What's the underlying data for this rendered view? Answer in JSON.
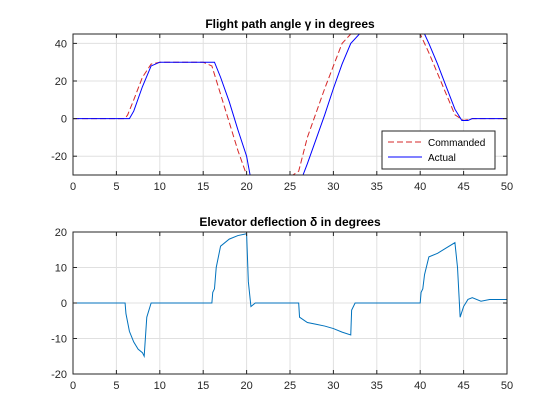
{
  "colors": {
    "commanded": "#d62728",
    "actual": "#0000ff",
    "elevator": "#0072bd",
    "grid": "#e0e0e0",
    "axis": "#262626"
  },
  "chart_data": [
    {
      "type": "line",
      "title": "Flight path angle γ in degrees",
      "xlabel": "",
      "ylabel": "",
      "xlim": [
        0,
        50
      ],
      "ylim": [
        -30,
        45
      ],
      "xticks": [
        0,
        5,
        10,
        15,
        20,
        25,
        30,
        35,
        40,
        45,
        50
      ],
      "yticks": [
        -20,
        0,
        20,
        40
      ],
      "grid": true,
      "legend": "bottom-right",
      "series": [
        {
          "name": "Commanded",
          "style": "dashed",
          "color": "#d62728",
          "x": [
            0,
            6,
            6.3,
            7,
            8,
            9,
            10,
            15,
            16,
            17,
            18,
            19,
            20,
            21,
            25,
            26,
            27,
            28,
            29,
            30,
            31,
            32,
            33,
            35,
            40,
            41,
            42,
            43,
            44,
            45,
            46,
            50
          ],
          "y": [
            0,
            0,
            2,
            10,
            22,
            29,
            30,
            30,
            28,
            13,
            -2,
            -17,
            -30,
            -31,
            -31,
            -28,
            -10,
            3,
            16,
            28,
            40,
            45,
            45,
            45,
            45,
            35,
            24,
            13,
            2,
            -1,
            0,
            0
          ]
        },
        {
          "name": "Actual",
          "style": "solid",
          "color": "#0000ff",
          "x": [
            0,
            6,
            6.5,
            7,
            8,
            9,
            10,
            15,
            16.3,
            17,
            18,
            19,
            20,
            20.4,
            21,
            26,
            26.5,
            27,
            28,
            29,
            30,
            31,
            32,
            33,
            35,
            40,
            40.5,
            41,
            42,
            43,
            44,
            44.8,
            45.5,
            46,
            50
          ],
          "y": [
            0,
            0,
            0,
            4,
            17,
            28,
            30,
            30,
            30,
            22,
            9,
            -6,
            -20,
            -30,
            -30,
            -30,
            -30,
            -24,
            -11,
            2,
            16,
            29,
            40,
            45,
            45,
            45,
            45,
            40,
            29,
            17,
            5,
            -1,
            -1,
            0,
            0
          ]
        }
      ]
    },
    {
      "type": "line",
      "title": "Elevator deflection δ in degrees",
      "xlabel": "",
      "ylabel": "",
      "xlim": [
        0,
        50
      ],
      "ylim": [
        -20,
        20
      ],
      "xticks": [
        0,
        5,
        10,
        15,
        20,
        25,
        30,
        35,
        40,
        45,
        50
      ],
      "yticks": [
        -20,
        -10,
        0,
        10,
        20
      ],
      "grid": true,
      "series": [
        {
          "name": "",
          "style": "solid",
          "color": "#0072bd",
          "x": [
            0,
            6,
            6.1,
            6.5,
            7,
            7.5,
            8,
            8.2,
            8.5,
            9,
            16,
            16.1,
            16.3,
            16.5,
            17,
            18,
            19,
            20,
            20.2,
            20.5,
            21,
            26,
            26.1,
            27,
            28,
            29,
            30,
            31,
            32,
            32.1,
            32.5,
            33,
            40,
            40.1,
            40.3,
            40.5,
            41,
            42,
            43,
            44,
            44.3,
            44.6,
            45,
            45.5,
            46,
            47,
            48,
            50
          ],
          "y": [
            0,
            0,
            -3,
            -8,
            -11,
            -13,
            -14,
            -15,
            -4,
            0,
            0,
            3,
            4,
            10,
            16,
            18,
            19,
            19.5,
            6,
            -1,
            0,
            0,
            -4,
            -5.5,
            -6,
            -6.5,
            -7.2,
            -8.2,
            -9,
            -2,
            0,
            0,
            0,
            3,
            4,
            8,
            13,
            14,
            15.5,
            17,
            10,
            -4,
            -1,
            1,
            1.5,
            0.5,
            1,
            1
          ]
        }
      ]
    }
  ]
}
